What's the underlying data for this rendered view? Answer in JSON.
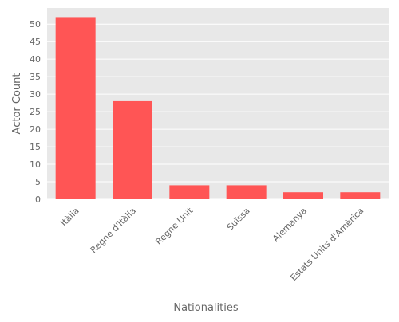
{
  "chart_data": {
    "type": "bar",
    "title": "",
    "xlabel": "Nationalities",
    "ylabel": "Actor Count",
    "categories": [
      "Itàlia",
      "Regne d'Itàlia",
      "Regne Unit",
      "Suïssa",
      "Alemanya",
      "Estats Units d'Amèrica"
    ],
    "values": [
      52,
      28,
      4,
      4,
      2,
      2
    ],
    "ylim": [
      0,
      54.6
    ],
    "yticks": [
      0,
      5,
      10,
      15,
      20,
      25,
      30,
      35,
      40,
      45,
      50
    ],
    "grid": true,
    "legend": "none",
    "colors": {
      "bar": "#ff5555",
      "plot_background": "#e8e8e8",
      "grid": "#ffffff",
      "text": "#666666"
    }
  }
}
